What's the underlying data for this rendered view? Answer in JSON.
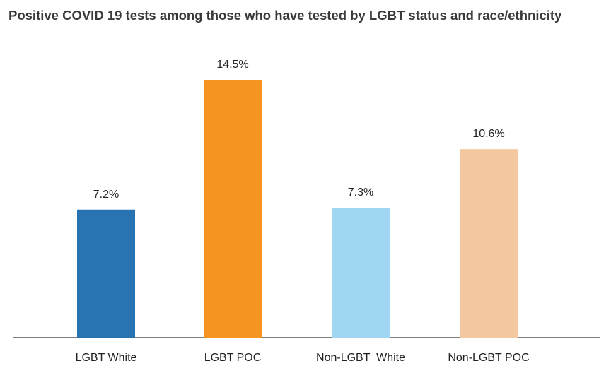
{
  "chart_data": {
    "type": "bar",
    "title": "Positive COVID 19 tests among those who have tested by LGBT status and race/ethnicity",
    "categories": [
      "LGBT White",
      "LGBT POC",
      "Non-LGBT  White",
      "Non-LGBT POC"
    ],
    "values": [
      7.2,
      14.5,
      7.3,
      10.6
    ],
    "labels": [
      "7.2%",
      "14.5%",
      "7.3%",
      "10.6%"
    ],
    "colors": [
      "#2873b1",
      "#f59420",
      "#9fd6f1",
      "#f3c89e"
    ],
    "ylim": [
      0,
      14.5
    ],
    "xlabel": "",
    "ylabel": "",
    "grid": false,
    "legend": "none"
  }
}
